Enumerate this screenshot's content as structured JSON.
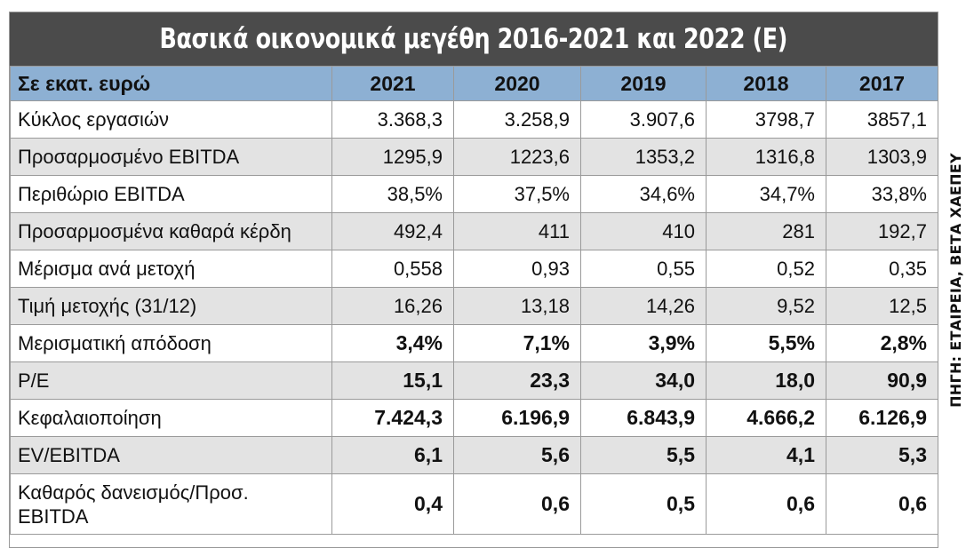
{
  "title": "Βασικά οικονομικά μεγέθη 2016-2021 και 2022 (Ε)",
  "header": {
    "label": "Σε εκατ. ευρώ",
    "years": [
      "2021",
      "2020",
      "2019",
      "2018",
      "2017"
    ]
  },
  "rows": [
    {
      "label": "Κύκλος εργασιών",
      "values": [
        "3.368,3",
        "3.258,9",
        "3.907,6",
        "3798,7",
        "3857,1"
      ]
    },
    {
      "label": "Προσαρμοσμένο EBITDA",
      "values": [
        "1295,9",
        "1223,6",
        "1353,2",
        "1316,8",
        "1303,9"
      ]
    },
    {
      "label": "Περιθώριο EBITDA",
      "values": [
        "38,5%",
        "37,5%",
        "34,6%",
        "34,7%",
        "33,8%"
      ]
    },
    {
      "label": "Προσαρμοσμένα καθαρά κέρδη",
      "values": [
        "492,4",
        "411",
        "410",
        "281",
        "192,7"
      ]
    },
    {
      "label": "Μέρισμα ανά μετοχή",
      "values": [
        "0,558",
        "0,93",
        "0,55",
        "0,52",
        "0,35"
      ]
    },
    {
      "label": "Τιμή μετοχής (31/12)",
      "values": [
        "16,26",
        "13,18",
        "14,26",
        "9,52",
        "12,5"
      ]
    },
    {
      "label": "Μερισματική απόδοση",
      "values": [
        "3,4%",
        "7,1%",
        "3,9%",
        "5,5%",
        "2,8%"
      ]
    },
    {
      "label": "P/E",
      "values": [
        "15,1",
        "23,3",
        "34,0",
        "18,0",
        "90,9"
      ]
    },
    {
      "label": "Κεφαλαιοποίηση",
      "values": [
        "7.424,3",
        "6.196,9",
        "6.843,9",
        "4.666,2",
        "6.126,9"
      ]
    },
    {
      "label": "EV/EBITDA",
      "values": [
        "6,1",
        "5,6",
        "5,5",
        "4,1",
        "5,3"
      ]
    },
    {
      "label": "Καθαρός δανεισμός/Προσ. EBITDA",
      "values": [
        "0,4",
        "0,6",
        "0,5",
        "0,6",
        "0,6"
      ]
    }
  ],
  "source": "ΠΗΓΗ: ΕΤΑΙΡΕΙΑ, ΒΕΤΑ ΧΑΕΠΕΥ",
  "colors": {
    "title_bg": "#4b4b4b",
    "header_bg": "#8db0d3",
    "stripe_bg": "#e3e3e3"
  }
}
